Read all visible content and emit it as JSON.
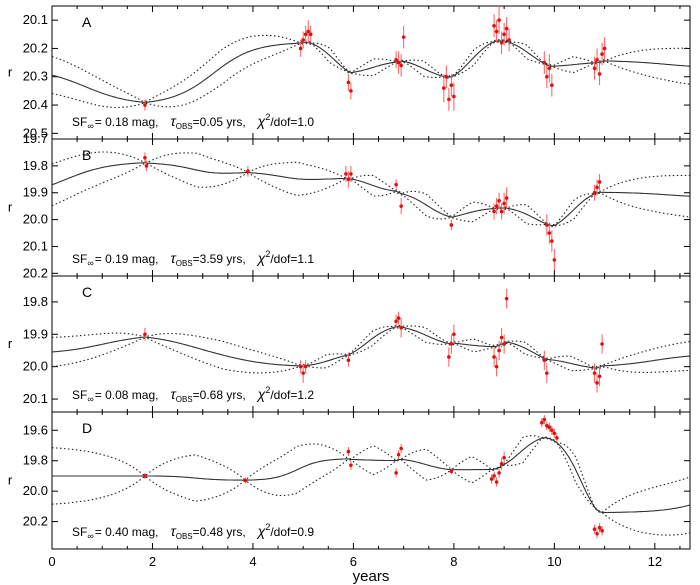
{
  "chart_data": {
    "type": "line",
    "xlabel": "years",
    "xlim": [
      0,
      12.7
    ],
    "xticks": [
      "0",
      "2",
      "4",
      "6",
      "8",
      "10",
      "12"
    ],
    "xtick_values": [
      0,
      2,
      4,
      6,
      8,
      10,
      12
    ],
    "panels": [
      {
        "letter": "A",
        "ylabel": "r",
        "ylim": [
          20.05,
          20.52
        ],
        "yticks": [
          "20.1",
          "20.2",
          "20.3",
          "20.4",
          "20.5"
        ],
        "ytick_values": [
          20.1,
          20.2,
          20.3,
          20.4,
          20.5
        ],
        "stats": {
          "sf": "SF",
          "sf_sub": "∞",
          "sf_val": "= 0.18 mag,",
          "tau": "τ",
          "tau_sub": "OBS",
          "tau_val": "=0.05 yrs,",
          "chi": "χ",
          "chi_sup": "2",
          "chi_val": "/dof=1.0"
        },
        "mean": 20.27,
        "sigma": 0.075,
        "damp": 0.9,
        "observations": [
          {
            "t": 1.85,
            "v": 20.4,
            "e": 0.02
          },
          {
            "t": 4.95,
            "v": 20.2,
            "e": 0.03
          },
          {
            "t": 5.0,
            "v": 20.17,
            "e": 0.03
          },
          {
            "t": 5.05,
            "v": 20.15,
            "e": 0.03
          },
          {
            "t": 5.1,
            "v": 20.14,
            "e": 0.04
          },
          {
            "t": 5.15,
            "v": 20.15,
            "e": 0.03
          },
          {
            "t": 5.9,
            "v": 20.32,
            "e": 0.03
          },
          {
            "t": 5.95,
            "v": 20.35,
            "e": 0.03
          },
          {
            "t": 6.85,
            "v": 20.24,
            "e": 0.03
          },
          {
            "t": 6.9,
            "v": 20.25,
            "e": 0.04
          },
          {
            "t": 6.95,
            "v": 20.26,
            "e": 0.04
          },
          {
            "t": 7.0,
            "v": 20.16,
            "e": 0.04
          },
          {
            "t": 7.8,
            "v": 20.34,
            "e": 0.05
          },
          {
            "t": 7.85,
            "v": 20.3,
            "e": 0.04
          },
          {
            "t": 7.9,
            "v": 20.38,
            "e": 0.04
          },
          {
            "t": 7.95,
            "v": 20.33,
            "e": 0.04
          },
          {
            "t": 8.0,
            "v": 20.37,
            "e": 0.05
          },
          {
            "t": 8.8,
            "v": 20.12,
            "e": 0.04
          },
          {
            "t": 8.85,
            "v": 20.14,
            "e": 0.04
          },
          {
            "t": 8.9,
            "v": 20.1,
            "e": 0.05
          },
          {
            "t": 8.95,
            "v": 20.18,
            "e": 0.04
          },
          {
            "t": 9.0,
            "v": 20.15,
            "e": 0.04
          },
          {
            "t": 9.05,
            "v": 20.13,
            "e": 0.04
          },
          {
            "t": 9.1,
            "v": 20.17,
            "e": 0.04
          },
          {
            "t": 9.8,
            "v": 20.25,
            "e": 0.04
          },
          {
            "t": 9.85,
            "v": 20.3,
            "e": 0.04
          },
          {
            "t": 9.9,
            "v": 20.27,
            "e": 0.05
          },
          {
            "t": 9.95,
            "v": 20.33,
            "e": 0.04
          },
          {
            "t": 10.8,
            "v": 20.27,
            "e": 0.04
          },
          {
            "t": 10.85,
            "v": 20.24,
            "e": 0.04
          },
          {
            "t": 10.9,
            "v": 20.29,
            "e": 0.04
          },
          {
            "t": 10.95,
            "v": 20.22,
            "e": 0.04
          },
          {
            "t": 11.0,
            "v": 20.2,
            "e": 0.04
          }
        ]
      },
      {
        "letter": "B",
        "ylabel": "r",
        "ylim": [
          19.7,
          20.21
        ],
        "yticks": [
          "19.7",
          "19.8",
          "19.9",
          "20.0",
          "20.1",
          "20.2"
        ],
        "ytick_values": [
          19.7,
          19.8,
          19.9,
          20.0,
          20.1,
          20.2
        ],
        "stats": {
          "sf": "SF",
          "sf_sub": "∞",
          "sf_val": "= 0.19 mag,",
          "tau": "τ",
          "tau_sub": "OBS",
          "tau_val": "=3.59 yrs,",
          "chi": "χ",
          "chi_sup": "2",
          "chi_val": "/dof=1.1"
        },
        "mean": 19.92,
        "sigma": 0.085,
        "damp": 0.75,
        "observations": [
          {
            "t": 1.85,
            "v": 19.77,
            "e": 0.02
          },
          {
            "t": 1.88,
            "v": 19.8,
            "e": 0.02
          },
          {
            "t": 3.9,
            "v": 19.82,
            "e": 0.02
          },
          {
            "t": 5.85,
            "v": 19.83,
            "e": 0.03
          },
          {
            "t": 5.9,
            "v": 19.85,
            "e": 0.03
          },
          {
            "t": 5.95,
            "v": 19.83,
            "e": 0.03
          },
          {
            "t": 6.85,
            "v": 19.87,
            "e": 0.02
          },
          {
            "t": 6.95,
            "v": 19.95,
            "e": 0.03
          },
          {
            "t": 7.95,
            "v": 20.02,
            "e": 0.02
          },
          {
            "t": 8.8,
            "v": 19.97,
            "e": 0.03
          },
          {
            "t": 8.85,
            "v": 19.95,
            "e": 0.03
          },
          {
            "t": 8.9,
            "v": 19.93,
            "e": 0.03
          },
          {
            "t": 8.95,
            "v": 19.97,
            "e": 0.03
          },
          {
            "t": 9.0,
            "v": 19.94,
            "e": 0.04
          },
          {
            "t": 9.05,
            "v": 19.92,
            "e": 0.04
          },
          {
            "t": 9.85,
            "v": 20.02,
            "e": 0.04
          },
          {
            "t": 9.9,
            "v": 20.05,
            "e": 0.04
          },
          {
            "t": 9.95,
            "v": 20.08,
            "e": 0.04
          },
          {
            "t": 10.0,
            "v": 20.15,
            "e": 0.04
          },
          {
            "t": 10.8,
            "v": 19.9,
            "e": 0.03
          },
          {
            "t": 10.85,
            "v": 19.88,
            "e": 0.03
          },
          {
            "t": 10.9,
            "v": 19.86,
            "e": 0.03
          }
        ]
      },
      {
        "letter": "C",
        "ylabel": "r",
        "ylim": [
          19.72,
          20.14
        ],
        "yticks": [
          "19.8",
          "19.9",
          "20.0",
          "20.1"
        ],
        "ytick_values": [
          19.8,
          19.9,
          20.0,
          20.1
        ],
        "stats": {
          "sf": "SF",
          "sf_sub": "∞",
          "sf_val": "= 0.08 mag,",
          "tau": "τ",
          "tau_sub": "OBS",
          "tau_val": "=0.68 yrs,",
          "chi": "χ",
          "chi_sup": "2",
          "chi_val": "/dof=1.2"
        },
        "mean": 19.96,
        "sigma": 0.05,
        "damp": 0.8,
        "observations": [
          {
            "t": 1.85,
            "v": 19.9,
            "e": 0.02
          },
          {
            "t": 4.95,
            "v": 20.0,
            "e": 0.02
          },
          {
            "t": 5.0,
            "v": 20.02,
            "e": 0.03
          },
          {
            "t": 5.05,
            "v": 20.0,
            "e": 0.02
          },
          {
            "t": 5.9,
            "v": 19.98,
            "e": 0.02
          },
          {
            "t": 6.85,
            "v": 19.86,
            "e": 0.02
          },
          {
            "t": 6.9,
            "v": 19.85,
            "e": 0.02
          },
          {
            "t": 6.95,
            "v": 19.88,
            "e": 0.03
          },
          {
            "t": 7.9,
            "v": 19.97,
            "e": 0.03
          },
          {
            "t": 7.95,
            "v": 19.93,
            "e": 0.03
          },
          {
            "t": 8.0,
            "v": 19.9,
            "e": 0.03
          },
          {
            "t": 8.8,
            "v": 19.97,
            "e": 0.03
          },
          {
            "t": 8.85,
            "v": 20.0,
            "e": 0.03
          },
          {
            "t": 8.9,
            "v": 19.95,
            "e": 0.03
          },
          {
            "t": 8.95,
            "v": 19.91,
            "e": 0.03
          },
          {
            "t": 9.0,
            "v": 19.93,
            "e": 0.03
          },
          {
            "t": 9.05,
            "v": 19.79,
            "e": 0.03
          },
          {
            "t": 9.8,
            "v": 19.98,
            "e": 0.03
          },
          {
            "t": 9.85,
            "v": 20.02,
            "e": 0.03
          },
          {
            "t": 10.8,
            "v": 20.02,
            "e": 0.03
          },
          {
            "t": 10.85,
            "v": 20.05,
            "e": 0.03
          },
          {
            "t": 10.9,
            "v": 20.03,
            "e": 0.03
          },
          {
            "t": 10.95,
            "v": 19.93,
            "e": 0.03
          }
        ]
      },
      {
        "letter": "D",
        "ylabel": "r",
        "ylim": [
          19.48,
          20.38
        ],
        "yticks": [
          "19.6",
          "19.8",
          "20.0",
          "20.2"
        ],
        "ytick_values": [
          19.6,
          19.8,
          20.0,
          20.2
        ],
        "stats": {
          "sf": "SF",
          "sf_sub": "∞",
          "sf_val": "= 0.40 mag,",
          "tau": "τ",
          "tau_sub": "OBS",
          "tau_val": "=0.48 yrs,",
          "chi": "χ",
          "chi_sup": "2",
          "chi_val": "/dof=0.9"
        },
        "mean": 19.9,
        "sigma": 0.2,
        "damp": 0.7,
        "observations": [
          {
            "t": 1.85,
            "v": 19.9,
            "e": 0.02
          },
          {
            "t": 3.85,
            "v": 19.93,
            "e": 0.02
          },
          {
            "t": 5.9,
            "v": 19.74,
            "e": 0.03
          },
          {
            "t": 5.95,
            "v": 19.83,
            "e": 0.03
          },
          {
            "t": 6.85,
            "v": 19.88,
            "e": 0.03
          },
          {
            "t": 6.9,
            "v": 19.76,
            "e": 0.03
          },
          {
            "t": 6.95,
            "v": 19.72,
            "e": 0.03
          },
          {
            "t": 7.95,
            "v": 19.87,
            "e": 0.02
          },
          {
            "t": 8.75,
            "v": 19.92,
            "e": 0.03
          },
          {
            "t": 8.8,
            "v": 19.9,
            "e": 0.03
          },
          {
            "t": 8.85,
            "v": 19.94,
            "e": 0.03
          },
          {
            "t": 8.9,
            "v": 19.88,
            "e": 0.03
          },
          {
            "t": 8.95,
            "v": 19.82,
            "e": 0.04
          },
          {
            "t": 9.0,
            "v": 19.78,
            "e": 0.04
          },
          {
            "t": 9.75,
            "v": 19.55,
            "e": 0.03
          },
          {
            "t": 9.8,
            "v": 19.53,
            "e": 0.03
          },
          {
            "t": 9.85,
            "v": 19.57,
            "e": 0.03
          },
          {
            "t": 9.9,
            "v": 19.58,
            "e": 0.03
          },
          {
            "t": 9.95,
            "v": 19.6,
            "e": 0.03
          },
          {
            "t": 10.0,
            "v": 19.62,
            "e": 0.03
          },
          {
            "t": 10.05,
            "v": 19.65,
            "e": 0.03
          },
          {
            "t": 10.8,
            "v": 20.25,
            "e": 0.03
          },
          {
            "t": 10.85,
            "v": 20.28,
            "e": 0.03
          },
          {
            "t": 10.9,
            "v": 20.24,
            "e": 0.03
          },
          {
            "t": 10.95,
            "v": 20.26,
            "e": 0.03
          }
        ]
      }
    ]
  }
}
